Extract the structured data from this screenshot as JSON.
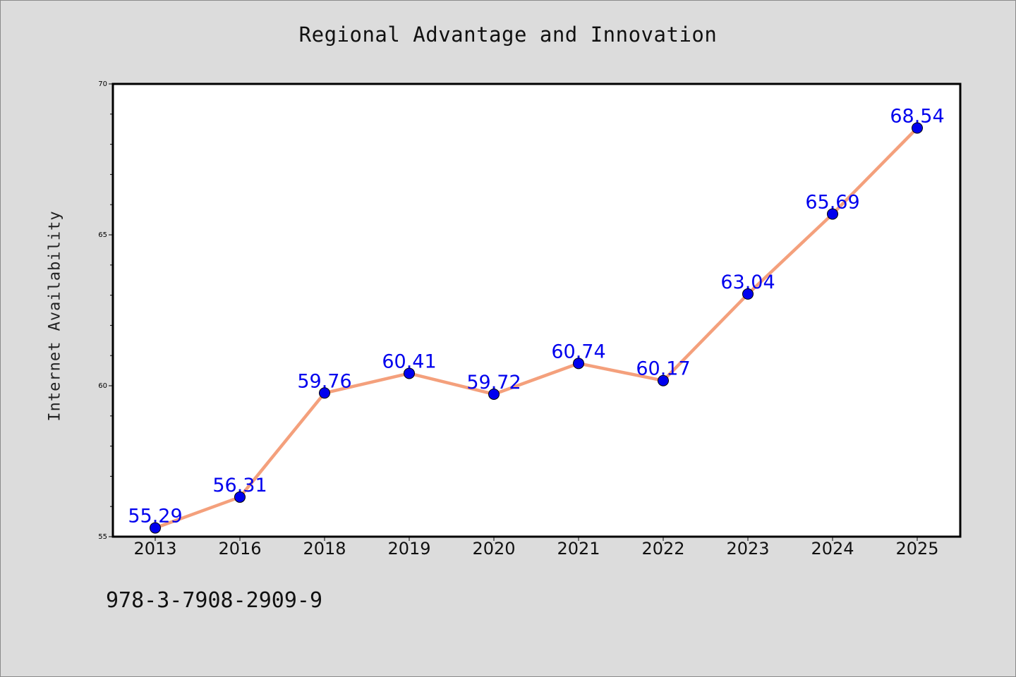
{
  "chart_data": {
    "type": "line",
    "title": "Regional Advantage and Innovation",
    "xlabel": "",
    "ylabel": "Internet Availability",
    "categories": [
      "2013",
      "2016",
      "2018",
      "2019",
      "2020",
      "2021",
      "2022",
      "2023",
      "2024",
      "2025"
    ],
    "series": [
      {
        "values": [
          55.29,
          56.31,
          59.76,
          60.41,
          59.72,
          60.74,
          60.17,
          63.04,
          65.69,
          68.54
        ]
      }
    ],
    "data_labels": [
      "55.29",
      "56.31",
      "59.76",
      "60.41",
      "59.72",
      "60.74",
      "60.17",
      "63.04",
      "65.69",
      "68.54"
    ],
    "ylim": [
      55,
      70
    ],
    "yticks": [
      55,
      60,
      65,
      70
    ],
    "ytick_labels": [
      "55",
      "60",
      "65",
      "70"
    ],
    "grid": false,
    "line_color": "#f4a07c",
    "marker_color": "#0000ee",
    "label_color": "#0000ee"
  },
  "footer": {
    "isbn": "978-3-7908-2909-9"
  }
}
